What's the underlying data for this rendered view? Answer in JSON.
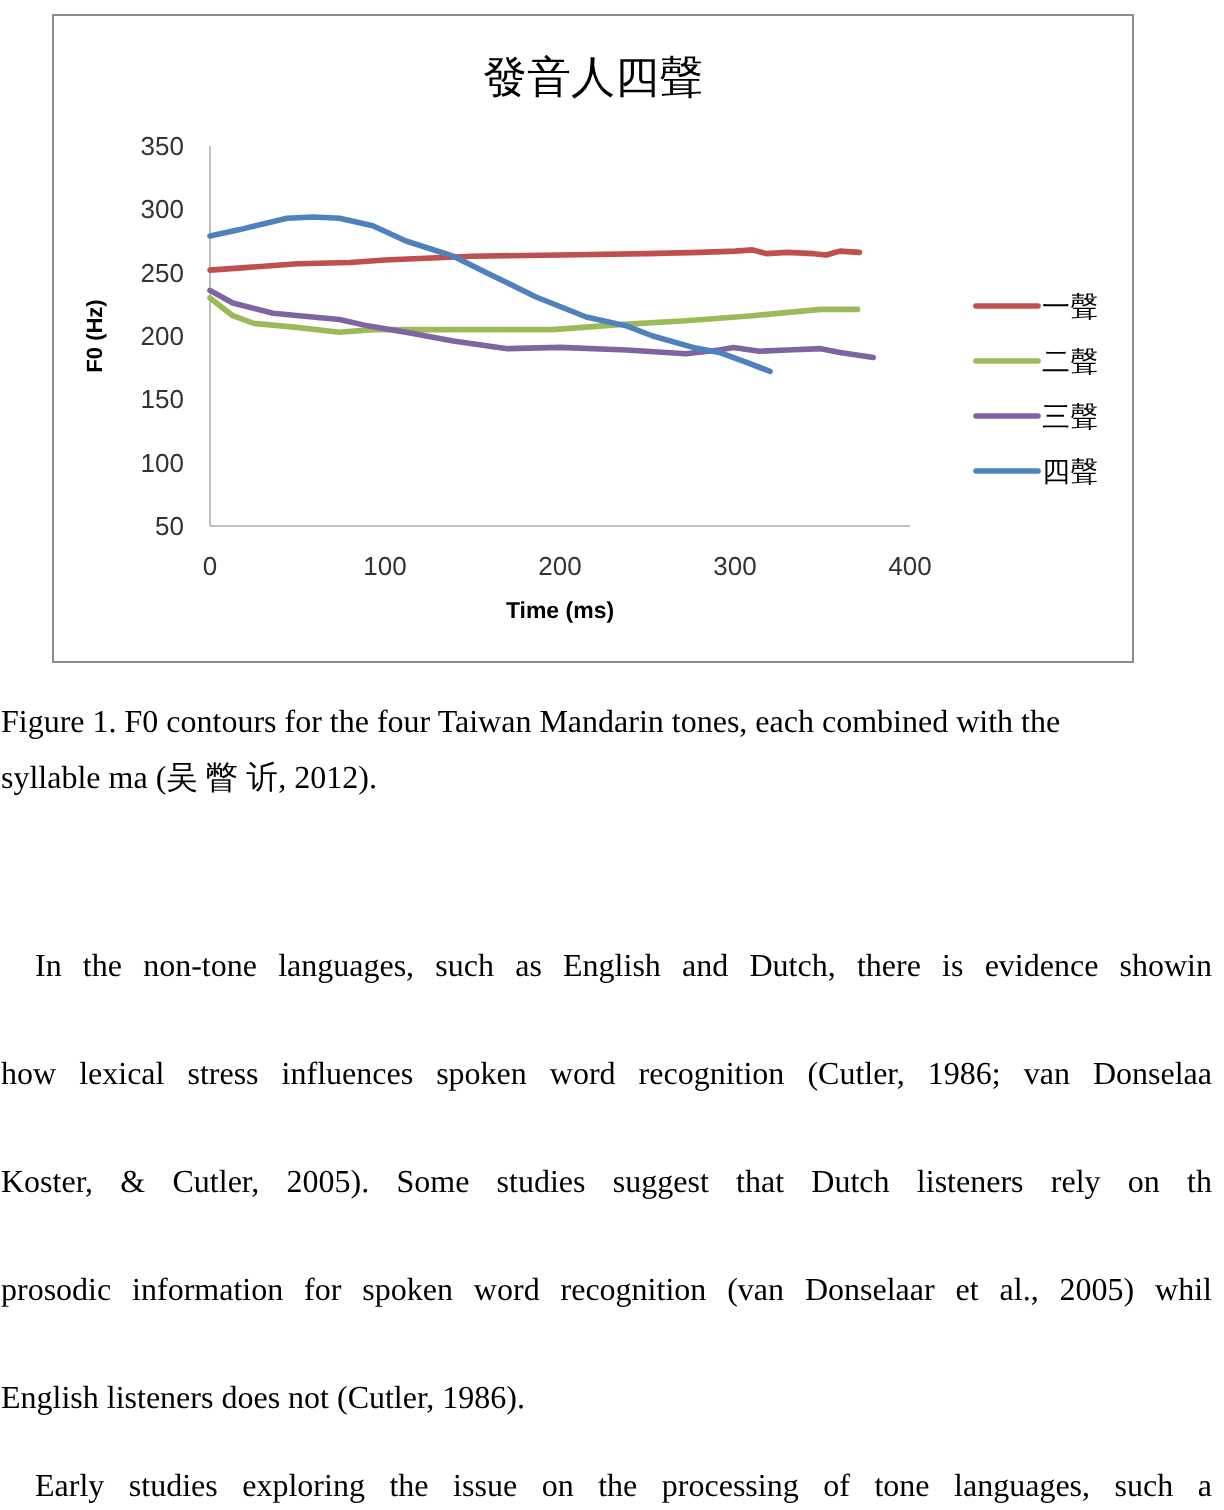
{
  "chart_data": {
    "type": "line",
    "title": "發音人四聲",
    "xlabel": "Time (ms)",
    "ylabel": "F0 (Hz)",
    "xlim": [
      0,
      400
    ],
    "xticks": [
      0,
      100,
      200,
      300,
      400
    ],
    "ylim": [
      50,
      350
    ],
    "yticks": [
      50,
      100,
      150,
      200,
      250,
      300,
      350
    ],
    "grid": false,
    "legend": "right",
    "series": [
      {
        "name": "一聲",
        "color": "#c0504d",
        "x": [
          0,
          20,
          50,
          80,
          100,
          150,
          200,
          250,
          280,
          300,
          310,
          318,
          330,
          345,
          352,
          360,
          371
        ],
        "values": [
          252,
          254,
          257,
          258,
          260,
          263,
          264,
          265,
          266,
          267,
          268,
          265,
          266,
          265,
          264,
          267,
          266
        ]
      },
      {
        "name": "二聲",
        "color": "#9bbb59",
        "x": [
          0,
          13,
          25,
          48,
          74,
          93,
          120,
          158,
          196,
          234,
          272,
          310,
          349,
          370
        ],
        "values": [
          230,
          216,
          210,
          207,
          203,
          205,
          205,
          205,
          205,
          209,
          212,
          216,
          221,
          221
        ]
      },
      {
        "name": "三聲",
        "color": "#8064a2",
        "x": [
          0,
          13,
          36,
          51,
          74,
          90,
          112,
          139,
          170,
          200,
          238,
          272,
          291,
          299,
          314,
          330,
          349,
          360,
          379
        ],
        "values": [
          236,
          226,
          218,
          216,
          213,
          208,
          203,
          196,
          190,
          191,
          189,
          186,
          189,
          191,
          188,
          189,
          190,
          187,
          183
        ]
      },
      {
        "name": "四聲",
        "color": "#4f81bd",
        "x": [
          0,
          17,
          44,
          59,
          74,
          93,
          112,
          139,
          158,
          186,
          215,
          238,
          253,
          276,
          291,
          307,
          320
        ],
        "values": [
          279,
          284,
          293,
          294,
          293,
          287,
          275,
          263,
          250,
          231,
          215,
          208,
          200,
          191,
          187,
          179,
          172
        ]
      }
    ],
    "annotations": [
      "Figure 1. F0 contours for the four Taiwan Mandarin tones, each combined with the",
      "syllable ma (吴 瞥 䜣, 2012).",
      "In the non-tone languages, such as English and Dutch, there is evidence showin",
      "how lexical stress influences spoken word recognition (Cutler, 1986; van Donselaa",
      "Koster, & Cutler, 2005). Some studies suggest that Dutch listeners rely on th",
      "prosodic information for spoken word recognition (van Donselaar et al., 2005) whil",
      "English listeners does not (Cutler, 1986).",
      "Early studies exploring the issue on the processing of tone languages, such a"
    ]
  }
}
